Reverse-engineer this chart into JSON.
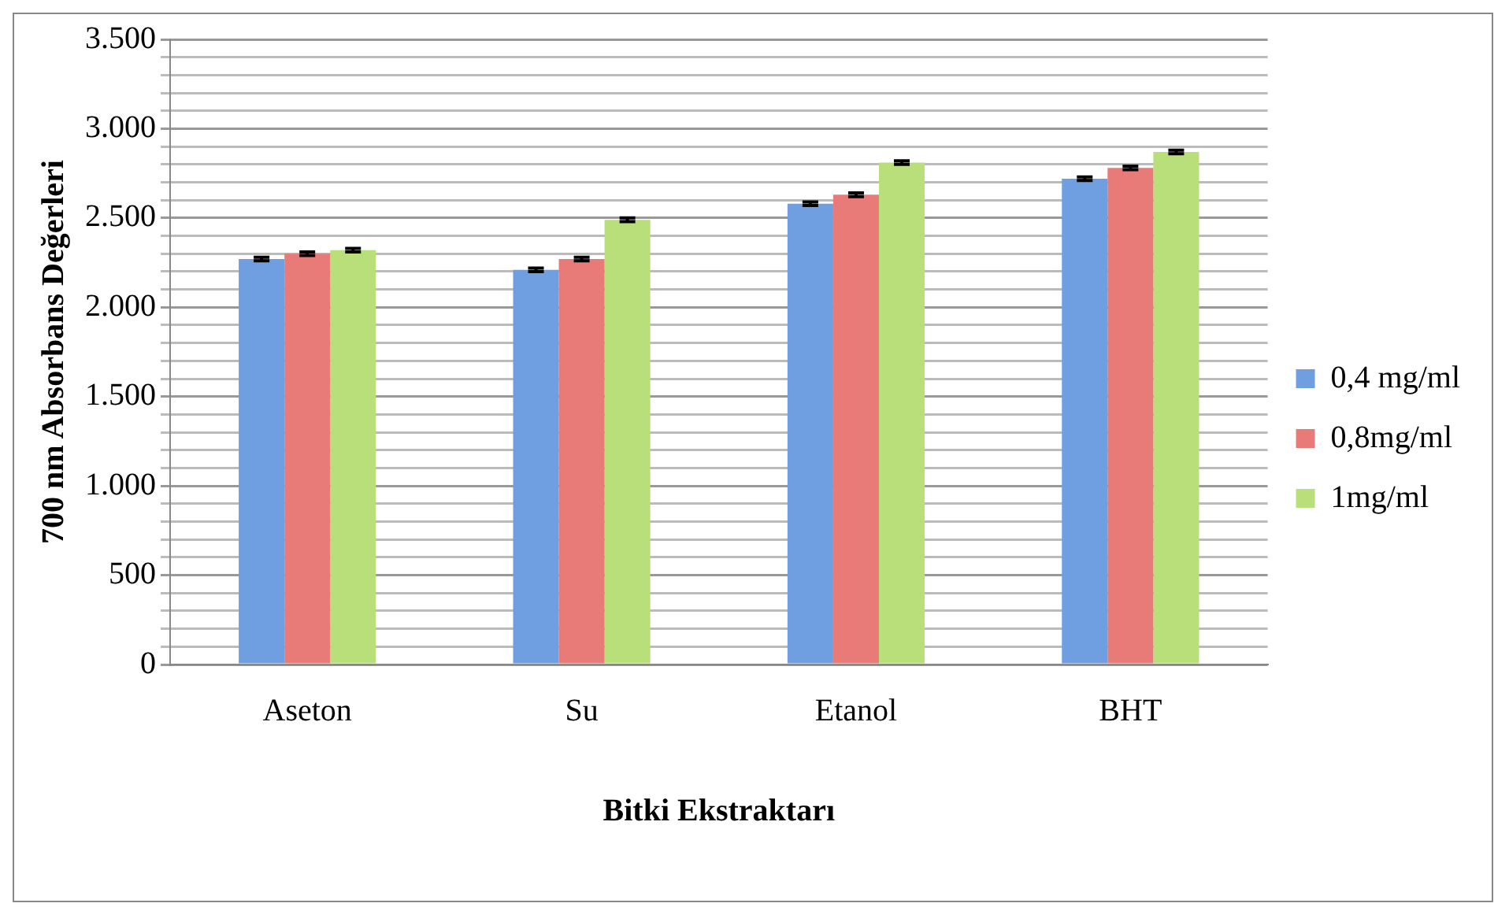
{
  "chart_data": {
    "type": "bar",
    "xlabel": "Bitki Ekstraktarı",
    "ylabel": "700 nm Absorbans Değerleri",
    "categories": [
      "Aseton",
      "Su",
      "Etanol",
      "BHT"
    ],
    "series": [
      {
        "name": "0,4 mg/ml",
        "color": "#6f9fe0",
        "values": [
          2270,
          2210,
          2580,
          2720
        ],
        "errors": [
          10,
          10,
          10,
          10
        ]
      },
      {
        "name": "0,8mg/ml",
        "color": "#e87a78",
        "values": [
          2300,
          2270,
          2630,
          2780
        ],
        "errors": [
          10,
          10,
          10,
          10
        ]
      },
      {
        "name": "1mg/ml",
        "color": "#b9df7a",
        "values": [
          2320,
          2490,
          2810,
          2870
        ],
        "errors": [
          10,
          10,
          10,
          10
        ]
      }
    ],
    "ylim": [
      0,
      3500
    ],
    "yticks": [
      {
        "value": 0,
        "label": "0"
      },
      {
        "value": 100,
        "label": null
      },
      {
        "value": 200,
        "label": null
      },
      {
        "value": 300,
        "label": null
      },
      {
        "value": 400,
        "label": null
      },
      {
        "value": 500,
        "label": "500"
      },
      {
        "value": 600,
        "label": null
      },
      {
        "value": 700,
        "label": null
      },
      {
        "value": 800,
        "label": null
      },
      {
        "value": 900,
        "label": null
      },
      {
        "value": 1000,
        "label": "1.000"
      },
      {
        "value": 1100,
        "label": null
      },
      {
        "value": 1200,
        "label": null
      },
      {
        "value": 1300,
        "label": null
      },
      {
        "value": 1400,
        "label": null
      },
      {
        "value": 1500,
        "label": "1.500"
      },
      {
        "value": 1600,
        "label": null
      },
      {
        "value": 1700,
        "label": null
      },
      {
        "value": 1800,
        "label": null
      },
      {
        "value": 1900,
        "label": null
      },
      {
        "value": 2000,
        "label": "2.000"
      },
      {
        "value": 2100,
        "label": null
      },
      {
        "value": 2200,
        "label": null
      },
      {
        "value": 2300,
        "label": null
      },
      {
        "value": 2400,
        "label": null
      },
      {
        "value": 2500,
        "label": "2.500"
      },
      {
        "value": 2600,
        "label": null
      },
      {
        "value": 2700,
        "label": null
      },
      {
        "value": 2800,
        "label": null
      },
      {
        "value": 2900,
        "label": null
      },
      {
        "value": 3000,
        "label": "3.000"
      },
      {
        "value": 3100,
        "label": null
      },
      {
        "value": 3200,
        "label": null
      },
      {
        "value": 3300,
        "label": null
      },
      {
        "value": 3400,
        "label": null
      },
      {
        "value": 3500,
        "label": "3.500"
      }
    ],
    "grid": "y",
    "legend": "right"
  }
}
